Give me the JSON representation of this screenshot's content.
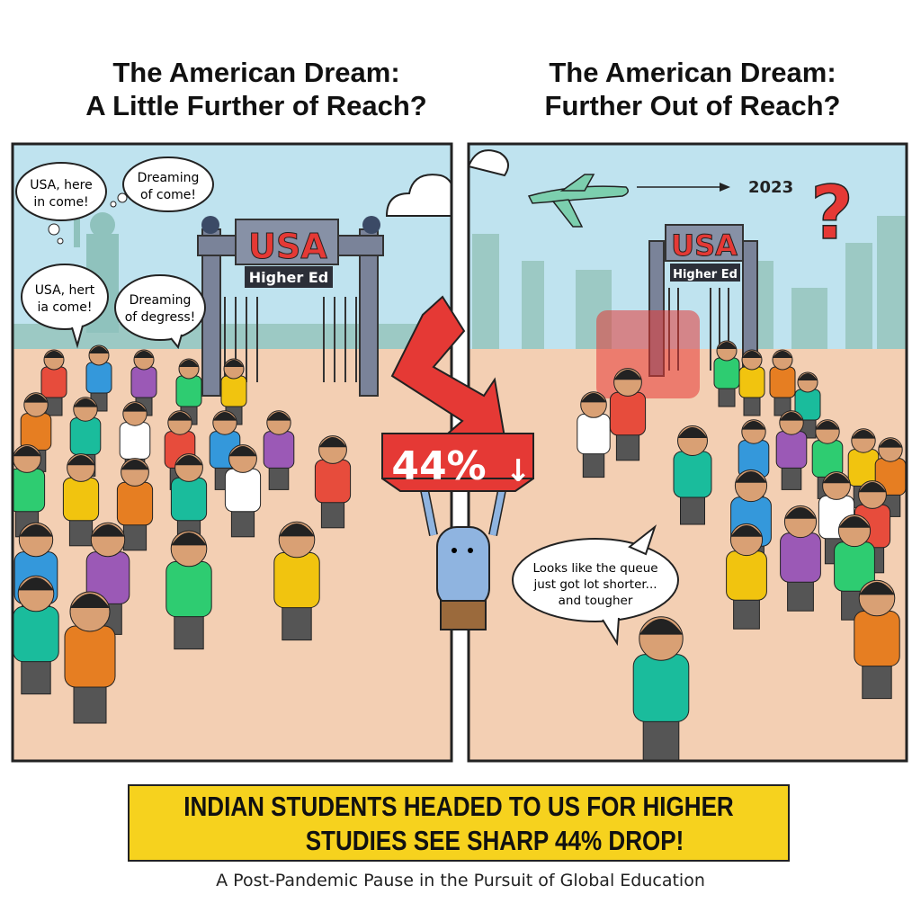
{
  "titles": {
    "left": [
      "The American Dream:",
      "A Little Further of Reach?"
    ],
    "right": [
      "The American Dream:",
      "Further Out of Reach?"
    ]
  },
  "left_panel": {
    "gate_sign": "USA",
    "gate_subsign": "Higher Ed",
    "bubbles": [
      "USA, here in come!",
      "Dreaming of come!",
      "USA, hert ia come!",
      "Dreaming of degress!"
    ],
    "bubble_lines": [
      [
        "USA, here",
        "in come!"
      ],
      [
        "Dreaming",
        "of come!"
      ],
      [
        "USA, hert",
        "ia come!"
      ],
      [
        "Dreaming",
        "of degress!"
      ]
    ]
  },
  "center": {
    "drop_label": "44%",
    "drop_arrow": "↓",
    "arrow_color": "#e53935"
  },
  "right_panel": {
    "gate_sign": "USA",
    "gate_subsign": "Higher Ed",
    "year_label": "2023",
    "question_mark": "?",
    "speech_lines": [
      "Looks like the queue",
      "just got lot shorter...",
      "and tougher"
    ]
  },
  "banner": {
    "lines": [
      "INDIAN STUDENTS HEADED TO US FOR HIGHER",
      "STUDIES SEE SHARP 44% DROP!"
    ],
    "color": "#f6d21e"
  },
  "subtitle": "A Post-Pandemic Pause in the Pursuit of Global Education",
  "colors": {
    "sky": "#bfe3ef",
    "ground": "#f3cfb3",
    "gate": "#7a8399",
    "sign_red": "#e53935"
  }
}
